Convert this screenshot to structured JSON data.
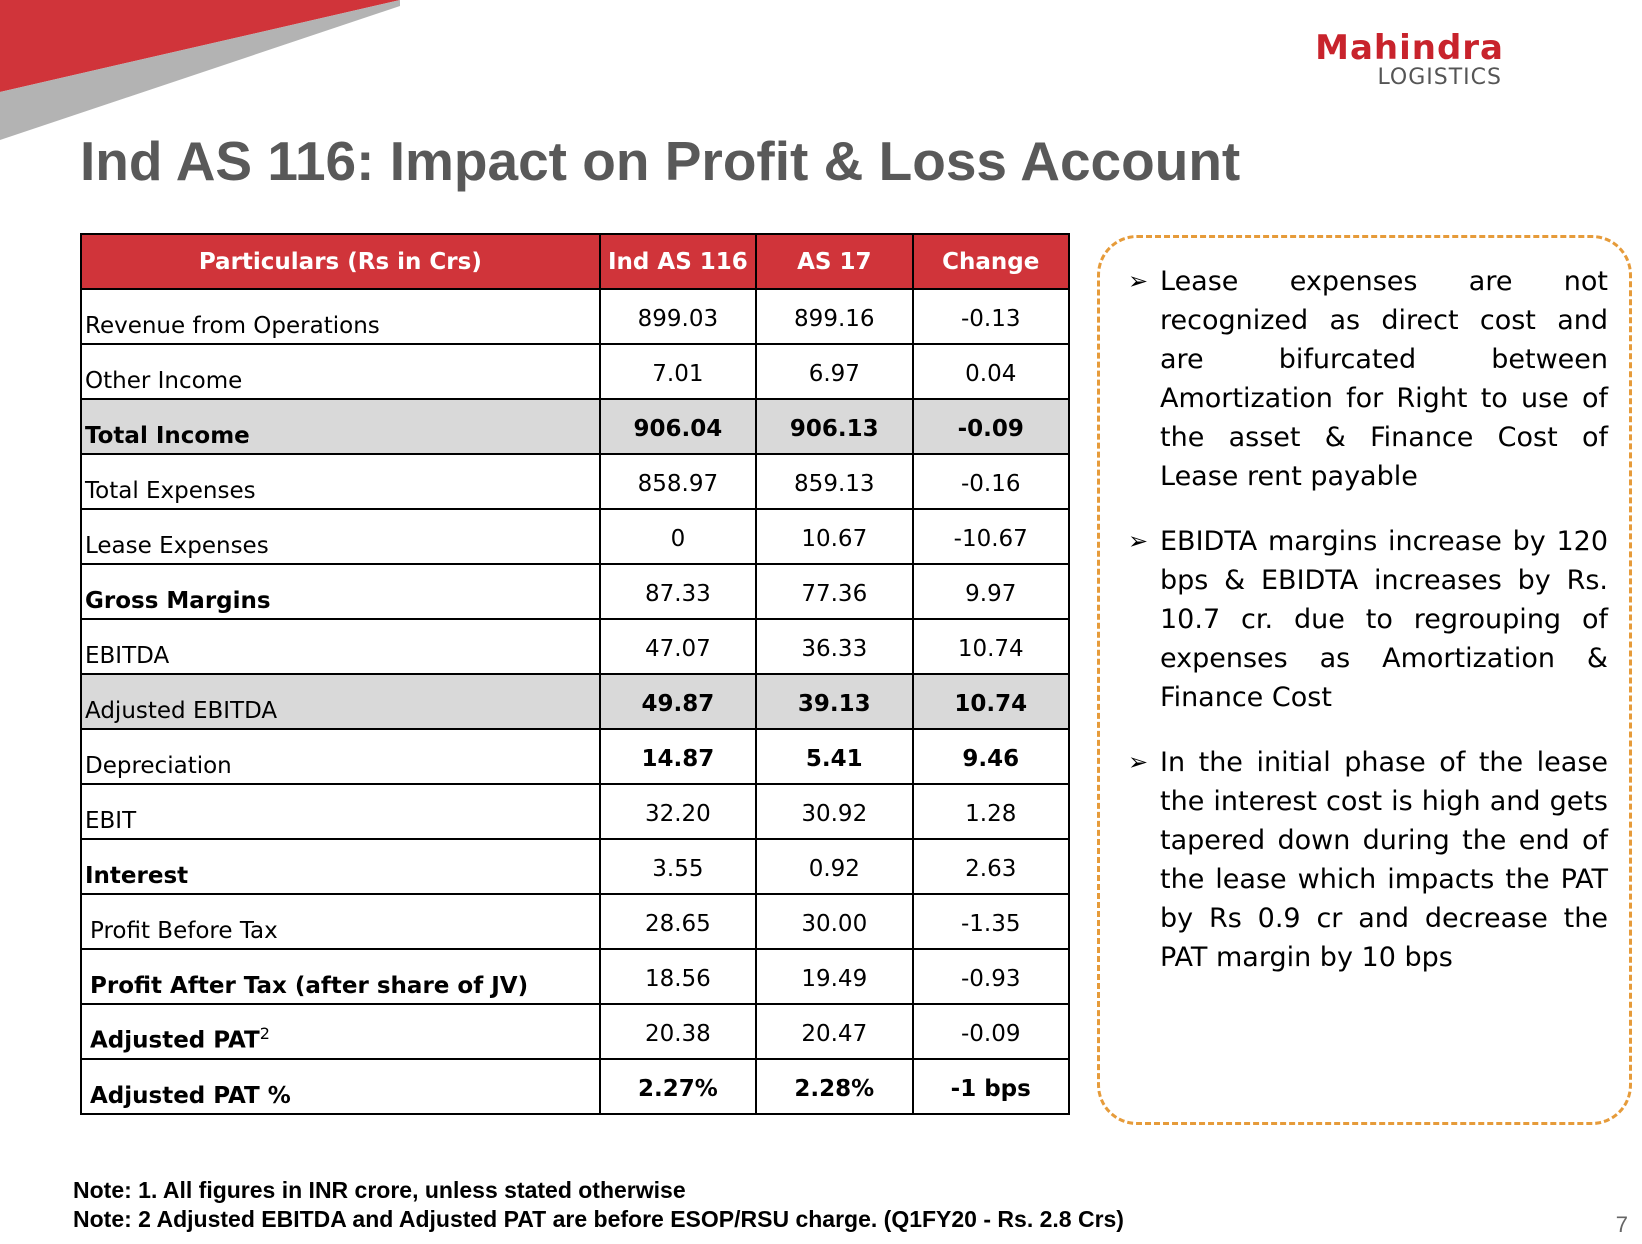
{
  "brand": {
    "name": "Mahindra",
    "sub": "LOGISTICS",
    "accent": "#c8232c"
  },
  "title": "Ind AS 116: Impact on Profit & Loss Account",
  "table": {
    "headers": [
      "Particulars (Rs in Crs)",
      "Ind AS 116",
      "AS 17",
      "Change"
    ],
    "rows": [
      {
        "label": "Revenue from Operations",
        "v1": "899.03",
        "v2": "899.16",
        "v3": "-0.13"
      },
      {
        "label": "Other Income",
        "v1": "7.01",
        "v2": "6.97",
        "v3": "0.04"
      },
      {
        "label": "Total Income",
        "v1": "906.04",
        "v2": "906.13",
        "v3": "-0.09"
      },
      {
        "label": "Total Expenses",
        "v1": "858.97",
        "v2": "859.13",
        "v3": "-0.16"
      },
      {
        "label": "Lease Expenses",
        "v1": "0",
        "v2": "10.67",
        "v3": "-10.67"
      },
      {
        "label": "Gross Margins",
        "v1": "87.33",
        "v2": "77.36",
        "v3": "9.97"
      },
      {
        "label": "EBITDA",
        "v1": "47.07",
        "v2": "36.33",
        "v3": "10.74"
      },
      {
        "label": "Adjusted EBITDA",
        "v1": "49.87",
        "v2": "39.13",
        "v3": "10.74"
      },
      {
        "label": "Depreciation",
        "v1": "14.87",
        "v2": "5.41",
        "v3": "9.46"
      },
      {
        "label": "EBIT",
        "v1": "32.20",
        "v2": "30.92",
        "v3": "1.28"
      },
      {
        "label": "Interest",
        "v1": "3.55",
        "v2": "0.92",
        "v3": "2.63"
      },
      {
        "label": "Profit Before Tax",
        "v1": "28.65",
        "v2": "30.00",
        "v3": "-1.35"
      },
      {
        "label": "Profit After Tax (after share of JV)",
        "v1": "18.56",
        "v2": "19.49",
        "v3": "-0.93"
      },
      {
        "label": "Adjusted PAT",
        "sup": "2",
        "v1": "20.38",
        "v2": "20.47",
        "v3": "-0.09"
      },
      {
        "label": "Adjusted PAT %",
        "v1": "2.27%",
        "v2": "2.28%",
        "v3": "-1 bps"
      }
    ]
  },
  "bullets": [
    "Lease expenses are not recognized as direct cost and are bifurcated between Amortization for Right to use of the asset & Finance Cost of Lease rent payable",
    "EBIDTA margins increase by 120 bps & EBIDTA increases by Rs. 10.7 cr. due to regrouping of expenses as Amortization & Finance Cost",
    "In the initial phase of the lease the interest cost is high and gets tapered down during the end of the lease which impacts the PAT by Rs 0.9 cr and decrease the PAT margin by 10 bps"
  ],
  "notes": [
    "Note: 1. All figures in INR crore, unless stated otherwise",
    "Note: 2 Adjusted EBITDA and Adjusted PAT are before ESOP/RSU charge. (Q1FY20 - Rs. 2.8 Crs)"
  ],
  "page_number": "7"
}
